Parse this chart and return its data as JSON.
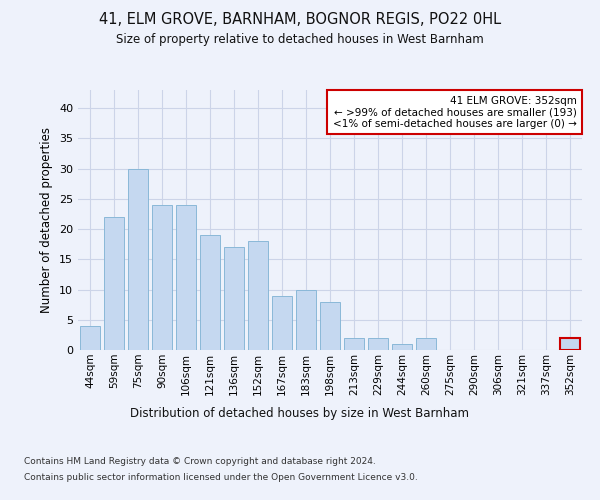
{
  "title1": "41, ELM GROVE, BARNHAM, BOGNOR REGIS, PO22 0HL",
  "title2": "Size of property relative to detached houses in West Barnham",
  "xlabel": "Distribution of detached houses by size in West Barnham",
  "ylabel": "Number of detached properties",
  "categories": [
    "44sqm",
    "59sqm",
    "75sqm",
    "90sqm",
    "106sqm",
    "121sqm",
    "136sqm",
    "152sqm",
    "167sqm",
    "183sqm",
    "198sqm",
    "213sqm",
    "229sqm",
    "244sqm",
    "260sqm",
    "275sqm",
    "290sqm",
    "306sqm",
    "321sqm",
    "337sqm",
    "352sqm"
  ],
  "values": [
    4,
    22,
    30,
    24,
    24,
    19,
    17,
    18,
    9,
    10,
    8,
    2,
    2,
    1,
    2,
    0,
    0,
    0,
    0,
    0,
    2
  ],
  "bar_color": "#c5d8f0",
  "bar_edgecolor": "#8ab8d8",
  "highlight_index": 20,
  "highlight_bar_edgecolor": "#cc0000",
  "ylim": [
    0,
    43
  ],
  "yticks": [
    0,
    5,
    10,
    15,
    20,
    25,
    30,
    35,
    40
  ],
  "annotation_box_text": "41 ELM GROVE: 352sqm\n← >99% of detached houses are smaller (193)\n<1% of semi-detached houses are larger (0) →",
  "annotation_box_color": "#ffffff",
  "annotation_box_edgecolor": "#cc0000",
  "footnote1": "Contains HM Land Registry data © Crown copyright and database right 2024.",
  "footnote2": "Contains public sector information licensed under the Open Government Licence v3.0.",
  "grid_color": "#ccd4e8",
  "background_color": "#eef2fb",
  "plot_bg_color": "#eef2fb"
}
